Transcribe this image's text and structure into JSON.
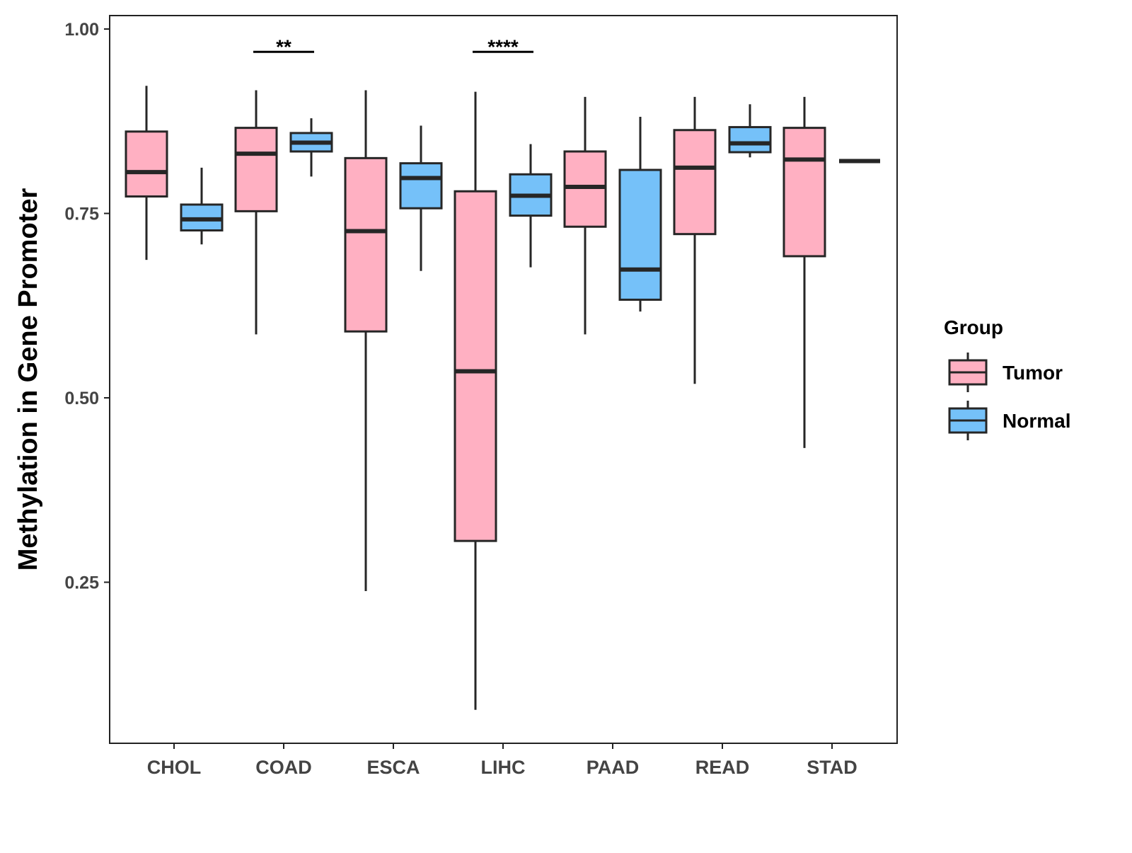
{
  "chart_data": {
    "type": "box",
    "title": "",
    "xlabel": "",
    "ylabel": "Methylation in Gene Promoter",
    "ylim": [
      0.03,
      1.02
    ],
    "yticks": [
      "0.25",
      "0.50",
      "0.75",
      "1.00"
    ],
    "categories": [
      "CHOL",
      "COAD",
      "ESCA",
      "LIHC",
      "PAAD",
      "READ",
      "STAD"
    ],
    "legend": {
      "title": "Group",
      "position": "right",
      "entries": [
        "Tumor",
        "Normal"
      ]
    },
    "colors": {
      "Tumor": "#FFB0C2",
      "Normal": "#75C1F9",
      "outline": "#262626"
    },
    "series": [
      {
        "name": "Tumor",
        "boxes": [
          {
            "min": 0.687,
            "q1": 0.773,
            "median": 0.806,
            "q3": 0.861,
            "max": 0.923
          },
          {
            "min": 0.586,
            "q1": 0.753,
            "median": 0.831,
            "q3": 0.866,
            "max": 0.917
          },
          {
            "min": 0.238,
            "q1": 0.59,
            "median": 0.726,
            "q3": 0.825,
            "max": 0.917
          },
          {
            "min": 0.077,
            "q1": 0.306,
            "median": 0.536,
            "q3": 0.78,
            "max": 0.915
          },
          {
            "min": 0.586,
            "q1": 0.732,
            "median": 0.786,
            "q3": 0.834,
            "max": 0.908
          },
          {
            "min": 0.519,
            "q1": 0.722,
            "median": 0.812,
            "q3": 0.863,
            "max": 0.908
          },
          {
            "min": 0.432,
            "q1": 0.692,
            "median": 0.823,
            "q3": 0.866,
            "max": 0.908
          }
        ]
      },
      {
        "name": "Normal",
        "boxes": [
          {
            "min": 0.708,
            "q1": 0.727,
            "median": 0.742,
            "q3": 0.762,
            "max": 0.812
          },
          {
            "min": 0.8,
            "q1": 0.834,
            "median": 0.846,
            "q3": 0.859,
            "max": 0.879
          },
          {
            "min": 0.672,
            "q1": 0.757,
            "median": 0.798,
            "q3": 0.818,
            "max": 0.869
          },
          {
            "min": 0.677,
            "q1": 0.747,
            "median": 0.774,
            "q3": 0.803,
            "max": 0.844
          },
          {
            "min": 0.617,
            "q1": 0.633,
            "median": 0.674,
            "q3": 0.809,
            "max": 0.881
          },
          {
            "min": 0.826,
            "q1": 0.833,
            "median": 0.845,
            "q3": 0.867,
            "max": 0.898
          },
          {
            "min": 0.821,
            "q1": 0.821,
            "median": 0.821,
            "q3": 0.821,
            "max": 0.821
          }
        ]
      }
    ],
    "annotations": [
      {
        "category": "COAD",
        "label": "**",
        "y": 0.969
      },
      {
        "category": "LIHC",
        "label": "****",
        "y": 0.969
      }
    ]
  }
}
